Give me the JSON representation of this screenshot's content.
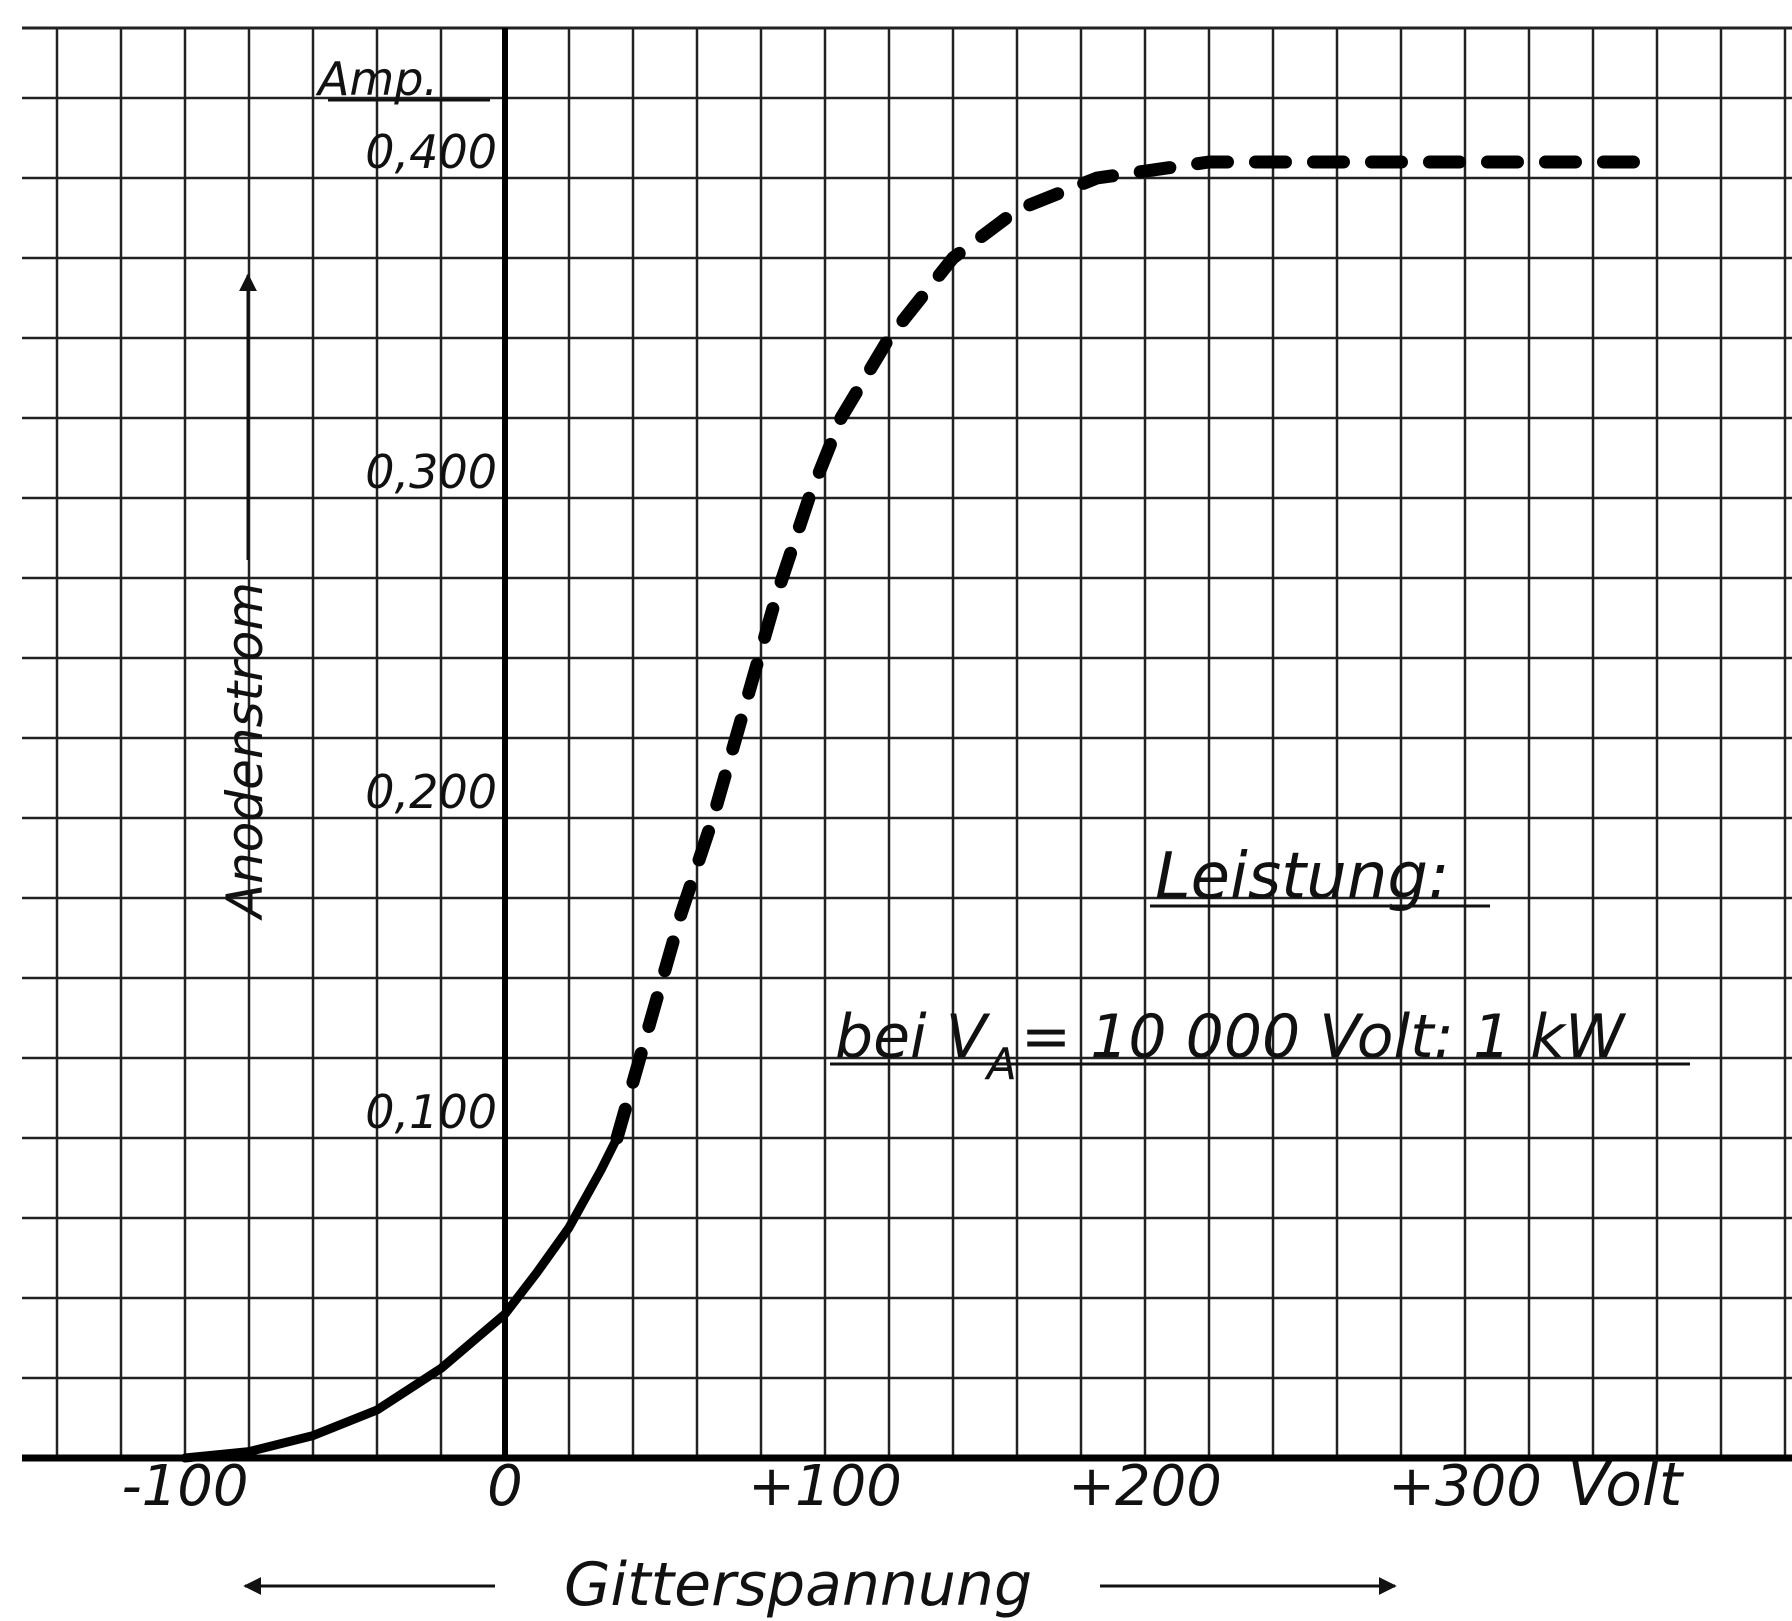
{
  "chart_data": {
    "type": "line",
    "xlim": [
      -150,
      400
    ],
    "ylim": [
      0,
      0.45
    ],
    "grid": true,
    "xlabel": "Gitterspannung",
    "ylabel": "Anodenstrom",
    "y_unit": "Amp.",
    "x_unit": "Volt",
    "x_ticks": [
      {
        "value": -100,
        "label": "-100"
      },
      {
        "value": 0,
        "label": "0"
      },
      {
        "value": 100,
        "label": "+100"
      },
      {
        "value": 200,
        "label": "+200"
      },
      {
        "value": 300,
        "label": "+300"
      }
    ],
    "y_ticks": [
      {
        "value": 0.1,
        "label": "0,100"
      },
      {
        "value": 0.2,
        "label": "0,200"
      },
      {
        "value": 0.3,
        "label": "0,300"
      },
      {
        "value": 0.4,
        "label": "0,400"
      }
    ],
    "series": [
      {
        "style": "solid",
        "x": [
          -100,
          -80,
          -60,
          -40,
          -20,
          0,
          10,
          20,
          30,
          35
        ],
        "y": [
          0.0,
          0.002,
          0.007,
          0.015,
          0.028,
          0.045,
          0.058,
          0.072,
          0.09,
          0.1
        ]
      },
      {
        "style": "dashed",
        "x": [
          35,
          45,
          55,
          65,
          75,
          85,
          95,
          105,
          120,
          140,
          160,
          185,
          220,
          260,
          300,
          360
        ],
        "y": [
          0.1,
          0.135,
          0.17,
          0.2,
          0.235,
          0.27,
          0.3,
          0.325,
          0.35,
          0.375,
          0.39,
          0.4,
          0.405,
          0.405,
          0.405,
          0.405
        ]
      }
    ],
    "annotations": [
      {
        "text": "Leistung:"
      },
      {
        "text": "bei V",
        "subscript": "A",
        "text_after": "= 10 000 Volt: 1 kW"
      }
    ]
  }
}
